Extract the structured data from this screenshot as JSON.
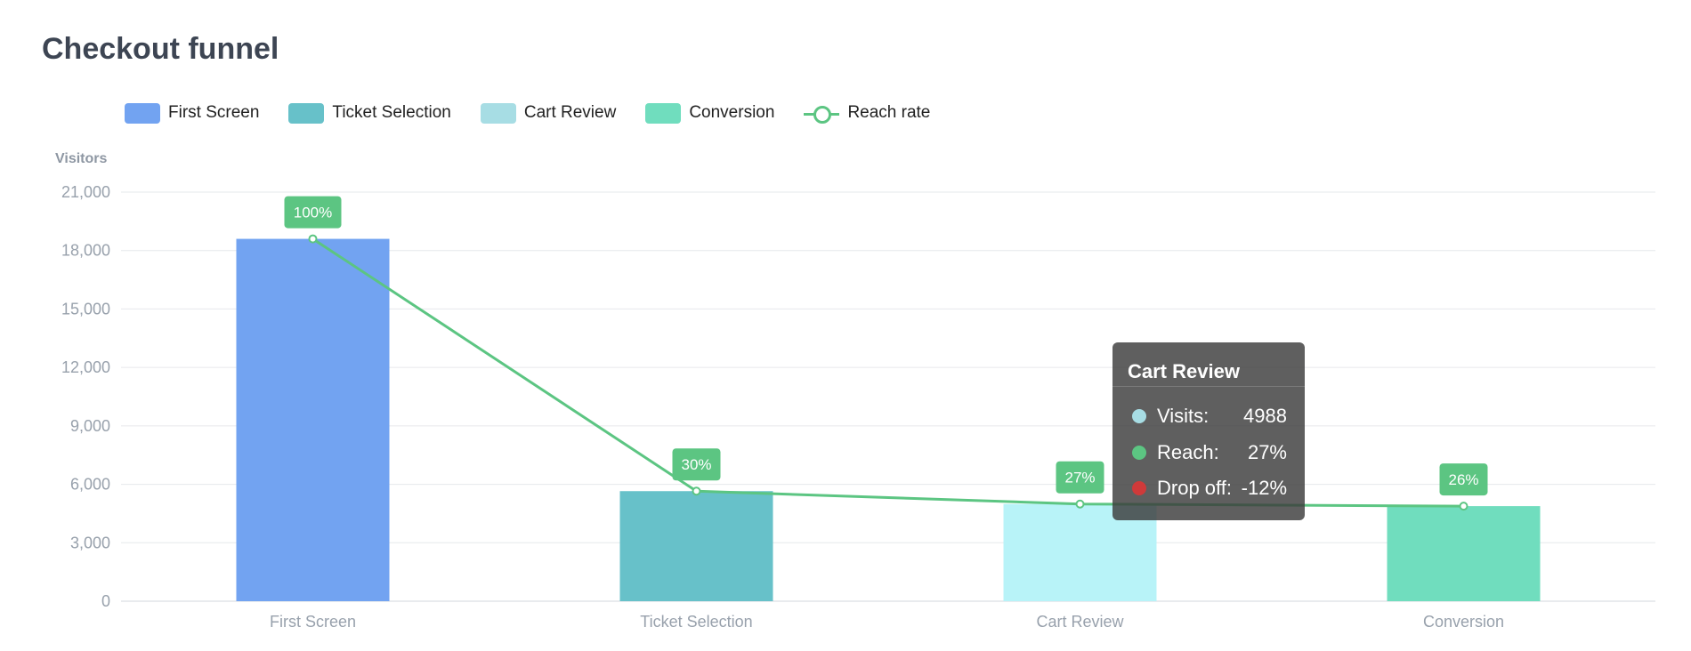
{
  "title": "Checkout funnel",
  "legend": [
    {
      "name": "First Screen",
      "color": "#72a3f1",
      "kind": "bar"
    },
    {
      "name": "Ticket Selection",
      "color": "#67c1c9",
      "kind": "bar"
    },
    {
      "name": "Cart Review",
      "color": "#a7dde4",
      "kind": "bar"
    },
    {
      "name": "Conversion",
      "color": "#70ddbe",
      "kind": "bar"
    },
    {
      "name": "Reach rate",
      "color": "#5cc582",
      "kind": "line"
    }
  ],
  "chart_data": {
    "type": "bar",
    "ylabel": "Visitors",
    "xlabel": "",
    "ylim": [
      0,
      21000
    ],
    "yticks": [
      0,
      3000,
      6000,
      9000,
      12000,
      15000,
      18000,
      21000
    ],
    "ytick_labels": [
      "0",
      "3,000",
      "6,000",
      "9,000",
      "12,000",
      "15,000",
      "18,000",
      "21,000"
    ],
    "grid": true,
    "legend_position": "top-left",
    "categories": [
      "First Screen",
      "Ticket Selection",
      "Cart Review",
      "Conversion"
    ],
    "values": [
      18600,
      5650,
      4988,
      4880
    ],
    "bar_colors": [
      "#72a3f1",
      "#67c1c9",
      "#b8f3f8",
      "#70ddbe"
    ],
    "reach_rate": {
      "name": "Reach rate",
      "color": "#5cc582",
      "labels": [
        "100%",
        "30%",
        "27%",
        "26%"
      ]
    }
  },
  "tooltip": {
    "title": "Cart Review",
    "rows": [
      {
        "label": "Visits:",
        "value": "4988",
        "color": "#a7dde4"
      },
      {
        "label": "Reach:",
        "value": "27%",
        "color": "#5cc582"
      },
      {
        "label": "Drop off:",
        "value": "-12%",
        "color": "#cf3a3a"
      }
    ]
  }
}
